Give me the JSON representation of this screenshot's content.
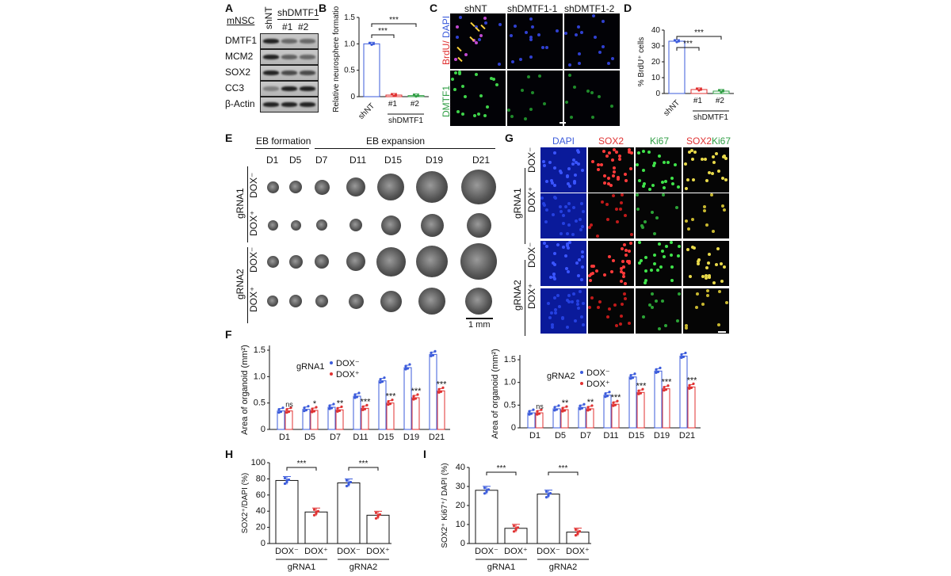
{
  "panelA": {
    "letter": "A",
    "title": "mNSC",
    "lanes": [
      "shNT",
      "shDMTF1",
      "#1",
      "#2"
    ],
    "proteins": [
      "DMTF1",
      "MCM2",
      "SOX2",
      "CC3",
      "β-Actin"
    ]
  },
  "panelB": {
    "letter": "B",
    "ylabel": "Relative neurosphere formation",
    "sig": [
      "***",
      "***"
    ],
    "group": "shDMTF1"
  },
  "panelC": {
    "letter": "C",
    "cols": [
      "shNT",
      "shDMTF1-1",
      "shDMTF1-2"
    ],
    "row1a": "BrdU/",
    "row1b": "DAPI",
    "row2": "DMTF1"
  },
  "panelD": {
    "letter": "D",
    "ylabel": "% BrdU⁺ cells",
    "sig": [
      "***",
      "***"
    ],
    "group": "shDMTF1"
  },
  "panelE": {
    "letter": "E",
    "phase1": "EB formation",
    "phase2": "EB expansion",
    "days": [
      "D1",
      "D5",
      "D7",
      "D11",
      "D15",
      "D19",
      "D21"
    ],
    "groups": [
      "gRNA1",
      "gRNA2"
    ],
    "conds": [
      "DOX⁻",
      "DOX⁺"
    ],
    "scale": "1 mm"
  },
  "panelG": {
    "letter": "G",
    "cols": [
      "DAPI",
      "SOX2",
      "Ki67",
      "SOX2",
      "Ki67"
    ],
    "groups": [
      "gRNA1",
      "gRNA2"
    ],
    "conds": [
      "DOX⁻",
      "DOX⁺"
    ]
  },
  "panelF": {
    "letter": "F"
  },
  "panelH": {
    "letter": "H"
  },
  "panelI": {
    "letter": "I"
  },
  "chart_data": [
    {
      "id": "B",
      "type": "bar",
      "categories": [
        "shNT",
        "#1",
        "#2"
      ],
      "values": [
        1.0,
        0.03,
        0.02
      ],
      "ylabel": "Relative neurosphere formation",
      "ylim": [
        0,
        1.5
      ],
      "yticks": [
        0,
        0.5,
        1.0,
        1.5
      ],
      "colors": [
        "#3b5bdb",
        "#e03131",
        "#2f9e44"
      ]
    },
    {
      "id": "D",
      "type": "bar",
      "categories": [
        "shNT",
        "#1",
        "#2"
      ],
      "values": [
        33,
        2.5,
        1.5
      ],
      "ylabel": "% BrdU⁺ cells",
      "ylim": [
        0,
        40
      ],
      "yticks": [
        0,
        10,
        20,
        30,
        40
      ],
      "colors": [
        "#3b5bdb",
        "#e03131",
        "#2f9e44"
      ]
    },
    {
      "id": "F1",
      "type": "bar",
      "categories": [
        "D1",
        "D5",
        "D7",
        "D11",
        "D15",
        "D19",
        "D21"
      ],
      "series": [
        {
          "name": "DOX⁻",
          "color": "#3b5bdb",
          "values": [
            0.35,
            0.38,
            0.42,
            0.63,
            0.92,
            1.17,
            1.42
          ]
        },
        {
          "name": "DOX⁺",
          "color": "#e03131",
          "values": [
            0.35,
            0.36,
            0.37,
            0.4,
            0.5,
            0.6,
            0.73
          ]
        }
      ],
      "sig": [
        "ns",
        "*",
        "**",
        "***",
        "***",
        "***",
        "***"
      ],
      "legend_title": "gRNA1",
      "ylabel": "Area of organoid (mm²)",
      "ylim": [
        0,
        1.5
      ],
      "yticks": [
        0,
        0.5,
        1.0,
        1.5
      ]
    },
    {
      "id": "F2",
      "type": "bar",
      "categories": [
        "D1",
        "D5",
        "D7",
        "D11",
        "D15",
        "D19",
        "D21"
      ],
      "series": [
        {
          "name": "DOX⁻",
          "color": "#3b5bdb",
          "values": [
            0.33,
            0.42,
            0.45,
            0.72,
            1.12,
            1.25,
            1.58
          ]
        },
        {
          "name": "DOX⁺",
          "color": "#e03131",
          "values": [
            0.33,
            0.4,
            0.42,
            0.52,
            0.78,
            0.86,
            0.9
          ]
        }
      ],
      "sig": [
        "ns",
        "**",
        "**",
        "***",
        "***",
        "***",
        "***"
      ],
      "legend_title": "gRNA2",
      "ylabel": "Area of organoid (mm²)",
      "ylim": [
        0,
        1.5
      ],
      "yticks": [
        0,
        0.5,
        1.0,
        1.5
      ]
    },
    {
      "id": "H",
      "type": "bar",
      "categories": [
        "DOX⁻",
        "DOX⁺",
        "DOX⁻",
        "DOX⁺"
      ],
      "groups": [
        "gRNA1",
        "gRNA2"
      ],
      "values": [
        78,
        39,
        75,
        35
      ],
      "colors": [
        "#3b5bdb",
        "#e03131",
        "#3b5bdb",
        "#e03131"
      ],
      "sig": [
        "***",
        "***"
      ],
      "ylabel": "SOX2⁺/DAPI (%)",
      "ylim": [
        0,
        100
      ],
      "yticks": [
        0,
        20,
        40,
        60,
        80,
        100
      ]
    },
    {
      "id": "I",
      "type": "bar",
      "categories": [
        "DOX⁻",
        "DOX⁺",
        "DOX⁻",
        "DOX⁺"
      ],
      "groups": [
        "gRNA1",
        "gRNA2"
      ],
      "values": [
        28,
        8,
        26,
        6
      ],
      "colors": [
        "#3b5bdb",
        "#e03131",
        "#3b5bdb",
        "#e03131"
      ],
      "sig": [
        "***",
        "***"
      ],
      "ylabel": "SOX2⁺ Ki67⁺/ DAPI (%)",
      "ylim": [
        0,
        40
      ],
      "yticks": [
        0,
        10,
        20,
        30,
        40
      ]
    }
  ]
}
